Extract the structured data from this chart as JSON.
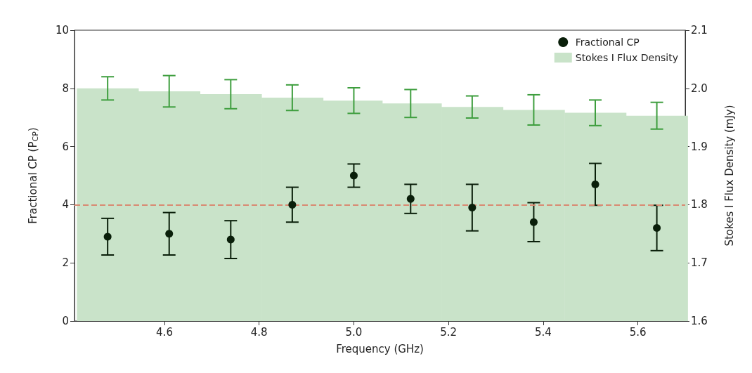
{
  "chart_data": {
    "type": "scatter",
    "xlabel": "Frequency (GHz)",
    "ylabel": "Fractional CP (P$_{CP}$)",
    "y2label": "Stokes I Flux Density (mJy)",
    "x": [
      4.48,
      4.61,
      4.74,
      4.87,
      5.0,
      5.12,
      5.25,
      5.38,
      5.51,
      5.64
    ],
    "series": [
      {
        "name": "Fractional CP",
        "color": "#0a1f0a",
        "marker": "circle",
        "values": [
          2.9,
          3.0,
          2.8,
          4.0,
          5.0,
          4.2,
          3.9,
          3.4,
          4.7,
          3.2
        ],
        "errors": [
          0.63,
          0.73,
          0.65,
          0.6,
          0.4,
          0.5,
          0.8,
          0.67,
          0.72,
          0.78
        ]
      },
      {
        "name": "Stokes I Flux Density",
        "type": "bar",
        "axis": "y2",
        "color": "#c9e3c9",
        "values": [
          2.0,
          1.995,
          1.99,
          1.984,
          1.979,
          1.974,
          1.968,
          1.963,
          1.958,
          1.953
        ],
        "errors": [
          0.02,
          0.027,
          0.025,
          0.022,
          0.022,
          0.024,
          0.019,
          0.026,
          0.022,
          0.023
        ]
      }
    ],
    "xlim": [
      4.41,
      5.7
    ],
    "xticks": [
      4.6,
      4.8,
      {
        "value": 5,
        "label": "5.0"
      },
      5.2,
      5.4,
      5.6
    ],
    "ylim": [
      0,
      10
    ],
    "yticks": [
      0,
      2,
      4,
      6,
      8,
      10
    ],
    "y2lim": [
      1.6,
      2.1
    ],
    "y2ticks": [
      1.6,
      1.7,
      1.8,
      1.9,
      {
        "value": 2,
        "label": "2.0"
      },
      2.1
    ],
    "ref_lines": [
      {
        "axis": "y",
        "value": 4,
        "color": "#d98a72",
        "line_style": "dashed"
      }
    ],
    "legend": "top right",
    "grid": false
  }
}
